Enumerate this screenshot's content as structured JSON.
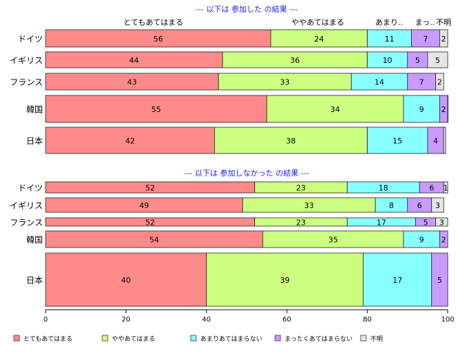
{
  "colors": {
    "とてもあてはまる": "#ff8a8a",
    "ややあてはまる": "#ccff80",
    "あまりあてはまらない": "#88ffff",
    "まったくあてはまらない": "#c79bff",
    "不明": "#e6e6e6"
  },
  "chart_data": {
    "type": "bar",
    "orientation": "horizontal-stacked",
    "xlim": [
      0,
      100
    ],
    "xticks": [
      0,
      20,
      40,
      60,
      80,
      100
    ],
    "legend_placement": "bottom",
    "categories_order": [
      "とてもあてはまる",
      "ややあてはまる",
      "あまりあてはまらない",
      "まったくあてはまらない",
      "不明"
    ],
    "panels": [
      {
        "title": "--- 以下は 参加した の結果 ---",
        "column_labels": [
          "とてもあてはまる",
          "ややあてはまる",
          "あまり..",
          "まっ..",
          "不明"
        ],
        "countries": [
          "ドイツ",
          "イギリス",
          "フランス",
          "韓国",
          "日本"
        ],
        "series": [
          {
            "name": "とてもあてはまる",
            "values": [
              56,
              44,
              43,
              55,
              42
            ]
          },
          {
            "name": "ややあてはまる",
            "values": [
              24,
              36,
              33,
              34,
              38
            ]
          },
          {
            "name": "あまりあてはまらない",
            "values": [
              11,
              10,
              14,
              9,
              15
            ]
          },
          {
            "name": "まったくあてはまらない",
            "values": [
              7,
              5,
              7,
              2,
              4
            ]
          },
          {
            "name": "不明",
            "values": [
              2,
              5,
              2,
              0.3,
              0.5
            ]
          }
        ],
        "labels": [
          [
            "56",
            "24",
            "11",
            "7",
            "2"
          ],
          [
            "44",
            "36",
            "10",
            "5",
            "5"
          ],
          [
            "43",
            "33",
            "14",
            "7",
            "2"
          ],
          [
            "55",
            "34",
            "9",
            "2",
            ""
          ],
          [
            "42",
            "38",
            "15",
            "4",
            ""
          ]
        ]
      },
      {
        "title": "--- 以下は 参加しなかった の結果 ---",
        "countries": [
          "ドイツ",
          "イギリス",
          "フランス",
          "韓国",
          "日本"
        ],
        "series": [
          {
            "name": "とてもあてはまる",
            "values": [
              52,
              49,
              52,
              54,
              40
            ]
          },
          {
            "name": "ややあてはまる",
            "values": [
              23,
              33,
              23,
              35,
              39
            ]
          },
          {
            "name": "あまりあてはまらない",
            "values": [
              18,
              8,
              17,
              9,
              17
            ]
          },
          {
            "name": "まったくあてはまらない",
            "values": [
              6,
              6,
              5,
              2,
              5
            ]
          },
          {
            "name": "不明",
            "values": [
              1,
              3,
              3,
              0,
              0
            ]
          }
        ],
        "labels": [
          [
            "52",
            "23",
            "18",
            "6",
            "1"
          ],
          [
            "49",
            "33",
            "8",
            "6",
            "3"
          ],
          [
            "52",
            "23",
            "17",
            "5",
            "3"
          ],
          [
            "54",
            "35",
            "9",
            "2",
            ""
          ],
          [
            "40",
            "39",
            "17",
            "5",
            ""
          ]
        ]
      }
    ]
  }
}
